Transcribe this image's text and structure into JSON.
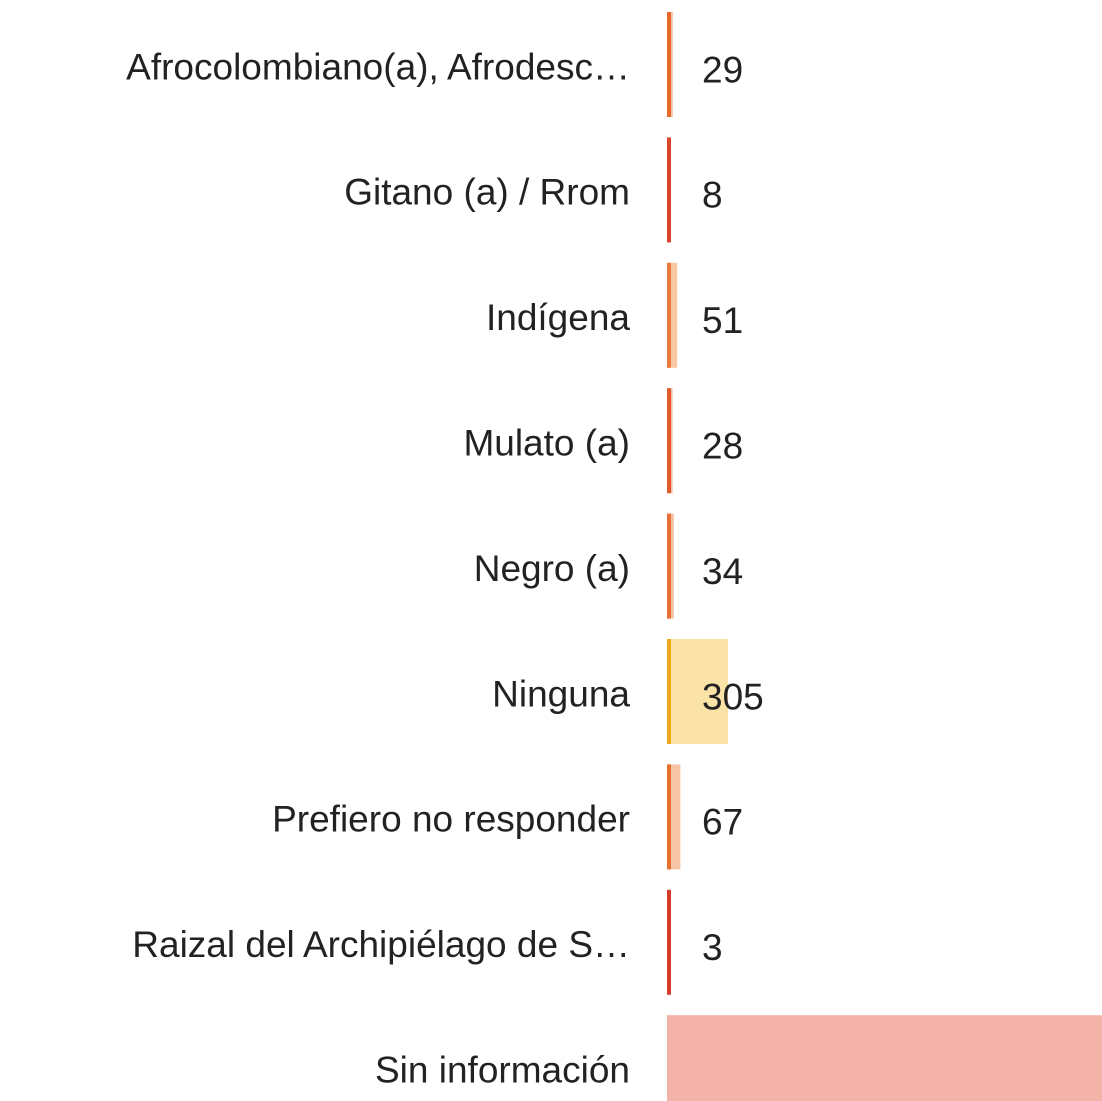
{
  "chart_data": {
    "type": "bar",
    "orientation": "horizontal",
    "categories": [
      "Afrocolombiano(a), Afrodesc…",
      "Gitano (a) / Rrom",
      "Indígena",
      "Mulato (a)",
      "Negro (a)",
      "Ninguna",
      "Prefiero no responder",
      "Raizal del Archipiélago de S…",
      "Sin información"
    ],
    "values": [
      29,
      8,
      51,
      28,
      34,
      305,
      67,
      3,
      2200
    ],
    "colors": [
      "#f5c0a4",
      "#f2b3a2",
      "#f8c8a4",
      "#f4bca3",
      "#f6c0a2",
      "#fbe2a6",
      "#f8c4a8",
      "#f2b0a4",
      "#f3b3a8"
    ],
    "edge_colors": [
      "#e8692a",
      "#d9452b",
      "#ea7b3a",
      "#e05a2b",
      "#e87036",
      "#f0a81c",
      "#e8702f",
      "#d63c2a",
      "#f3b3a8"
    ],
    "data_labels": true
  }
}
